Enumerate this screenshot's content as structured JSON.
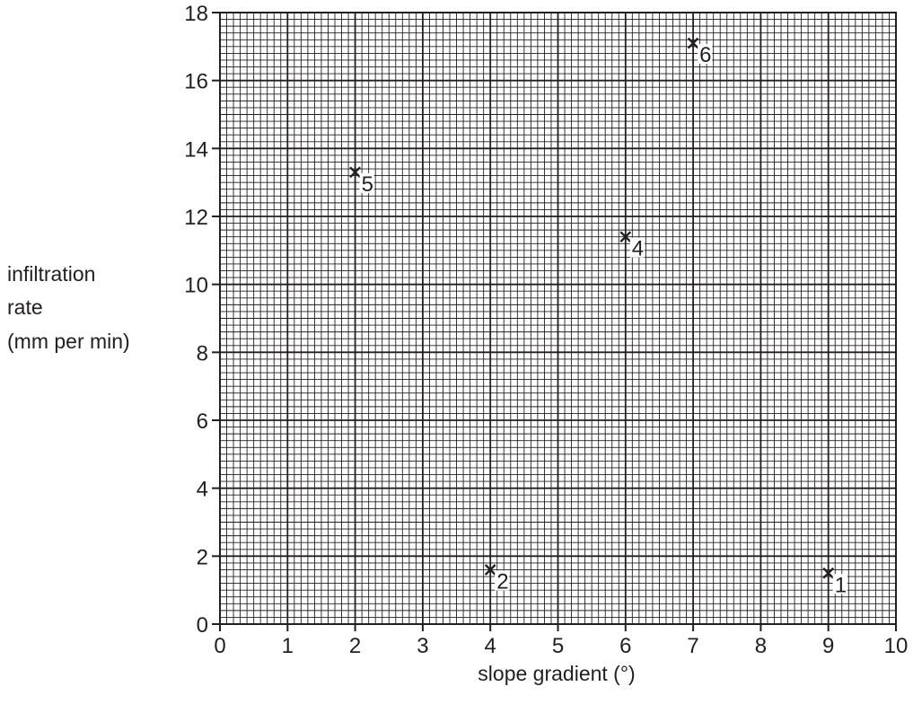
{
  "chart_data": {
    "type": "scatter",
    "title": "",
    "xlabel": "slope gradient (°)",
    "ylabel_lines": [
      "infiltration",
      "rate",
      "(mm per min)"
    ],
    "xlim": [
      0,
      10
    ],
    "ylim": [
      0,
      18
    ],
    "x_ticks": [
      0,
      1,
      2,
      3,
      4,
      5,
      6,
      7,
      8,
      9,
      10
    ],
    "y_ticks": [
      0,
      2,
      4,
      6,
      8,
      10,
      12,
      14,
      16,
      18
    ],
    "x_minor_per_major": 10,
    "y_minor_per_major": 10,
    "grid": true,
    "marker": "×",
    "colors": {
      "ink": "#231f20"
    },
    "points": [
      {
        "label": "1",
        "x": 9,
        "y": 1.5
      },
      {
        "label": "2",
        "x": 4,
        "y": 1.6
      },
      {
        "label": "4",
        "x": 6,
        "y": 11.4
      },
      {
        "label": "5",
        "x": 2,
        "y": 13.3
      },
      {
        "label": "6",
        "x": 7,
        "y": 17.1
      }
    ]
  }
}
